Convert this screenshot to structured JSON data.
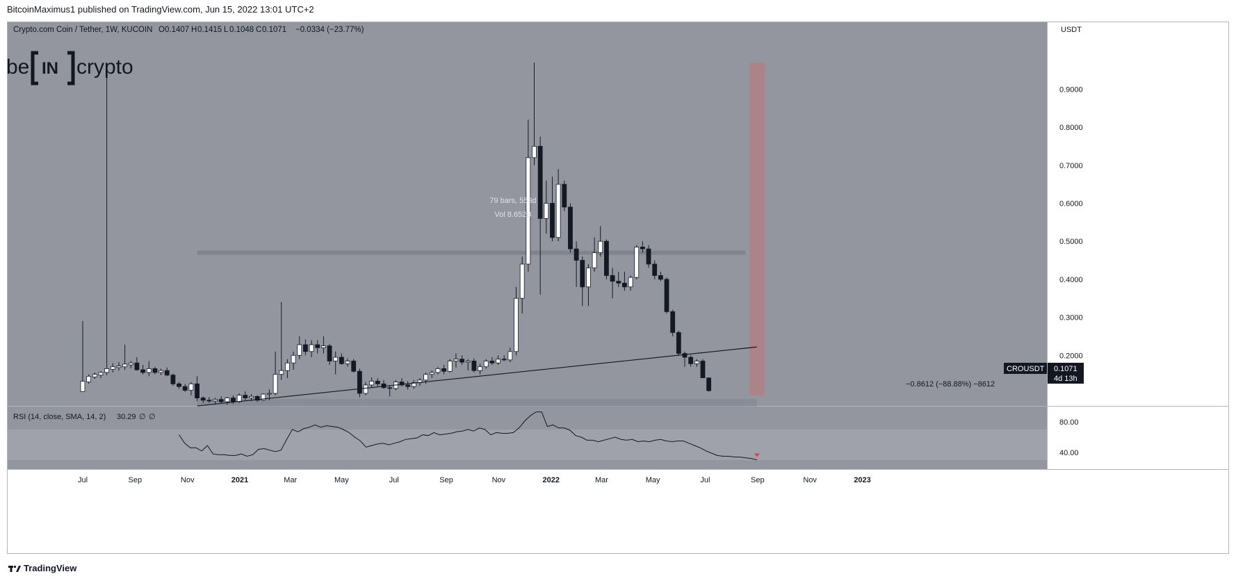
{
  "header": {
    "published_line": "BitcoinMaximus1 published on TradingView.com, Jun 15, 2022 13:01 UTC+2"
  },
  "legend": {
    "symbol_line": "Crypto.com Coin / Tether, 1W, KUCOIN",
    "o_label": "O",
    "o_value": "0.1407",
    "h_label": "H",
    "h_value": "0.1415",
    "l_label": "L",
    "l_value": "0.1048",
    "c_label": "C",
    "c_value": "0.1071",
    "change": "−0.0334 (−23.77%)"
  },
  "logo": {
    "left": "be",
    "mid": "IN",
    "right": "crypto"
  },
  "annotations": {
    "bars_range": "79 bars, 553d",
    "volume": "Vol 8.652B",
    "measure": "−0.8612 (−88.88%) −8612"
  },
  "price_tag": {
    "symbol": "CROUSDT",
    "value": "0.1071",
    "countdown": "4d 13h"
  },
  "rsi_legend": {
    "label": "RSI (14, close, SMA, 14, 2)",
    "value": "30.29",
    "n1": "∅",
    "n2": "∅"
  },
  "footer": {
    "brand": "TradingView"
  },
  "colors": {
    "plot_bg": "#93969f",
    "band_bg": "#9fa2aa",
    "up_body": "#ffffff",
    "down_body": "#151924",
    "wick": "#151924",
    "highlight_bar": "#ac8389",
    "resistance_band": "#7f828b",
    "signal_arrow": "#f23645"
  },
  "chart_data": [
    {
      "type": "candlestick",
      "title": "Crypto.com Coin / Tether, 1W, KUCOIN",
      "ylabel": "USDT",
      "y_axis_labels": [
        "0.9000",
        "0.8000",
        "0.7000",
        "0.6000",
        "0.5000",
        "0.4000",
        "0.3000",
        "0.2000"
      ],
      "y_ticks": [
        0.9,
        0.8,
        0.7,
        0.6,
        0.5,
        0.4,
        0.3,
        0.2
      ],
      "ylim": [
        0.03,
        1.0
      ],
      "x_tick_labels": [
        "Jul",
        "Sep",
        "Nov",
        "2021",
        "Mar",
        "May",
        "Jul",
        "Sep",
        "Nov",
        "2022",
        "Mar",
        "May",
        "Jul",
        "Sep",
        "Nov",
        "2023"
      ],
      "x_tick_weeks": [
        0,
        8.7,
        17.4,
        26.1,
        34.5,
        43.0,
        51.7,
        60.4,
        69.1,
        77.8,
        86.2,
        94.7,
        103.4,
        112.1,
        120.8,
        129.5
      ],
      "x_start": "2020-07-06",
      "x_unit": "week",
      "grid": false,
      "candles": [
        {
          "o": 0.105,
          "h": 0.29,
          "l": 0.105,
          "c": 0.132
        },
        {
          "o": 0.13,
          "h": 0.15,
          "l": 0.125,
          "c": 0.145
        },
        {
          "o": 0.143,
          "h": 0.155,
          "l": 0.138,
          "c": 0.15
        },
        {
          "o": 0.148,
          "h": 0.158,
          "l": 0.14,
          "c": 0.155
        },
        {
          "o": 0.155,
          "h": 0.97,
          "l": 0.148,
          "c": 0.165
        },
        {
          "o": 0.163,
          "h": 0.18,
          "l": 0.155,
          "c": 0.17
        },
        {
          "o": 0.168,
          "h": 0.182,
          "l": 0.16,
          "c": 0.172
        },
        {
          "o": 0.17,
          "h": 0.228,
          "l": 0.162,
          "c": 0.177
        },
        {
          "o": 0.175,
          "h": 0.185,
          "l": 0.166,
          "c": 0.18
        },
        {
          "o": 0.18,
          "h": 0.195,
          "l": 0.16,
          "c": 0.162
        },
        {
          "o": 0.162,
          "h": 0.175,
          "l": 0.15,
          "c": 0.155
        },
        {
          "o": 0.155,
          "h": 0.185,
          "l": 0.145,
          "c": 0.165
        },
        {
          "o": 0.165,
          "h": 0.17,
          "l": 0.15,
          "c": 0.155
        },
        {
          "o": 0.155,
          "h": 0.165,
          "l": 0.148,
          "c": 0.16
        },
        {
          "o": 0.16,
          "h": 0.168,
          "l": 0.145,
          "c": 0.148
        },
        {
          "o": 0.148,
          "h": 0.152,
          "l": 0.12,
          "c": 0.125
        },
        {
          "o": 0.125,
          "h": 0.13,
          "l": 0.112,
          "c": 0.118
        },
        {
          "o": 0.118,
          "h": 0.125,
          "l": 0.104,
          "c": 0.108
        },
        {
          "o": 0.108,
          "h": 0.13,
          "l": 0.095,
          "c": 0.125
        },
        {
          "o": 0.125,
          "h": 0.145,
          "l": 0.08,
          "c": 0.088
        },
        {
          "o": 0.088,
          "h": 0.092,
          "l": 0.075,
          "c": 0.082
        },
        {
          "o": 0.082,
          "h": 0.09,
          "l": 0.075,
          "c": 0.08
        },
        {
          "o": 0.08,
          "h": 0.088,
          "l": 0.072,
          "c": 0.084
        },
        {
          "o": 0.084,
          "h": 0.092,
          "l": 0.074,
          "c": 0.078
        },
        {
          "o": 0.078,
          "h": 0.09,
          "l": 0.07,
          "c": 0.088
        },
        {
          "o": 0.088,
          "h": 0.095,
          "l": 0.072,
          "c": 0.078
        },
        {
          "o": 0.078,
          "h": 0.1,
          "l": 0.075,
          "c": 0.095
        },
        {
          "o": 0.095,
          "h": 0.105,
          "l": 0.082,
          "c": 0.088
        },
        {
          "o": 0.088,
          "h": 0.098,
          "l": 0.08,
          "c": 0.092
        },
        {
          "o": 0.092,
          "h": 0.095,
          "l": 0.078,
          "c": 0.082
        },
        {
          "o": 0.082,
          "h": 0.1,
          "l": 0.08,
          "c": 0.098
        },
        {
          "o": 0.098,
          "h": 0.11,
          "l": 0.082,
          "c": 0.1
        },
        {
          "o": 0.1,
          "h": 0.21,
          "l": 0.095,
          "c": 0.15
        },
        {
          "o": 0.15,
          "h": 0.34,
          "l": 0.135,
          "c": 0.16
        },
        {
          "o": 0.16,
          "h": 0.19,
          "l": 0.14,
          "c": 0.18
        },
        {
          "o": 0.18,
          "h": 0.21,
          "l": 0.162,
          "c": 0.2
        },
        {
          "o": 0.2,
          "h": 0.25,
          "l": 0.19,
          "c": 0.228
        },
        {
          "o": 0.228,
          "h": 0.242,
          "l": 0.2,
          "c": 0.21
        },
        {
          "o": 0.21,
          "h": 0.24,
          "l": 0.195,
          "c": 0.228
        },
        {
          "o": 0.228,
          "h": 0.24,
          "l": 0.205,
          "c": 0.22
        },
        {
          "o": 0.22,
          "h": 0.25,
          "l": 0.205,
          "c": 0.225
        },
        {
          "o": 0.225,
          "h": 0.23,
          "l": 0.175,
          "c": 0.185
        },
        {
          "o": 0.185,
          "h": 0.21,
          "l": 0.15,
          "c": 0.195
        },
        {
          "o": 0.195,
          "h": 0.205,
          "l": 0.175,
          "c": 0.178
        },
        {
          "o": 0.178,
          "h": 0.192,
          "l": 0.17,
          "c": 0.185
        },
        {
          "o": 0.185,
          "h": 0.19,
          "l": 0.155,
          "c": 0.158
        },
        {
          "o": 0.158,
          "h": 0.165,
          "l": 0.09,
          "c": 0.1
        },
        {
          "o": 0.1,
          "h": 0.13,
          "l": 0.095,
          "c": 0.122
        },
        {
          "o": 0.122,
          "h": 0.142,
          "l": 0.115,
          "c": 0.132
        },
        {
          "o": 0.132,
          "h": 0.14,
          "l": 0.118,
          "c": 0.125
        },
        {
          "o": 0.125,
          "h": 0.135,
          "l": 0.112,
          "c": 0.115
        },
        {
          "o": 0.115,
          "h": 0.12,
          "l": 0.092,
          "c": 0.113
        },
        {
          "o": 0.113,
          "h": 0.135,
          "l": 0.108,
          "c": 0.13
        },
        {
          "o": 0.13,
          "h": 0.14,
          "l": 0.118,
          "c": 0.122
        },
        {
          "o": 0.122,
          "h": 0.132,
          "l": 0.11,
          "c": 0.118
        },
        {
          "o": 0.118,
          "h": 0.135,
          "l": 0.112,
          "c": 0.128
        },
        {
          "o": 0.128,
          "h": 0.14,
          "l": 0.12,
          "c": 0.135
        },
        {
          "o": 0.135,
          "h": 0.155,
          "l": 0.125,
          "c": 0.15
        },
        {
          "o": 0.15,
          "h": 0.16,
          "l": 0.14,
          "c": 0.155
        },
        {
          "o": 0.155,
          "h": 0.17,
          "l": 0.15,
          "c": 0.165
        },
        {
          "o": 0.165,
          "h": 0.175,
          "l": 0.15,
          "c": 0.158
        },
        {
          "o": 0.158,
          "h": 0.19,
          "l": 0.155,
          "c": 0.185
        },
        {
          "o": 0.185,
          "h": 0.205,
          "l": 0.168,
          "c": 0.19
        },
        {
          "o": 0.19,
          "h": 0.2,
          "l": 0.175,
          "c": 0.182
        },
        {
          "o": 0.182,
          "h": 0.19,
          "l": 0.16,
          "c": 0.185
        },
        {
          "o": 0.185,
          "h": 0.192,
          "l": 0.155,
          "c": 0.16
        },
        {
          "o": 0.16,
          "h": 0.178,
          "l": 0.15,
          "c": 0.17
        },
        {
          "o": 0.17,
          "h": 0.19,
          "l": 0.165,
          "c": 0.185
        },
        {
          "o": 0.185,
          "h": 0.195,
          "l": 0.175,
          "c": 0.18
        },
        {
          "o": 0.18,
          "h": 0.2,
          "l": 0.175,
          "c": 0.19
        },
        {
          "o": 0.19,
          "h": 0.2,
          "l": 0.185,
          "c": 0.188
        },
        {
          "o": 0.188,
          "h": 0.22,
          "l": 0.182,
          "c": 0.21
        },
        {
          "o": 0.21,
          "h": 0.38,
          "l": 0.2,
          "c": 0.35
        },
        {
          "o": 0.35,
          "h": 0.46,
          "l": 0.31,
          "c": 0.44
        },
        {
          "o": 0.44,
          "h": 0.82,
          "l": 0.42,
          "c": 0.72
        },
        {
          "o": 0.72,
          "h": 0.97,
          "l": 0.7,
          "c": 0.75
        },
        {
          "o": 0.75,
          "h": 0.775,
          "l": 0.36,
          "c": 0.56
        },
        {
          "o": 0.56,
          "h": 0.66,
          "l": 0.52,
          "c": 0.6
        },
        {
          "o": 0.6,
          "h": 0.67,
          "l": 0.5,
          "c": 0.51
        },
        {
          "o": 0.51,
          "h": 0.69,
          "l": 0.5,
          "c": 0.65
        },
        {
          "o": 0.65,
          "h": 0.66,
          "l": 0.58,
          "c": 0.59
        },
        {
          "o": 0.59,
          "h": 0.6,
          "l": 0.47,
          "c": 0.48
        },
        {
          "o": 0.48,
          "h": 0.5,
          "l": 0.38,
          "c": 0.45
        },
        {
          "o": 0.45,
          "h": 0.46,
          "l": 0.33,
          "c": 0.38
        },
        {
          "o": 0.38,
          "h": 0.44,
          "l": 0.33,
          "c": 0.43
        },
        {
          "o": 0.43,
          "h": 0.51,
          "l": 0.42,
          "c": 0.47
        },
        {
          "o": 0.47,
          "h": 0.54,
          "l": 0.46,
          "c": 0.5
        },
        {
          "o": 0.5,
          "h": 0.505,
          "l": 0.4,
          "c": 0.41
        },
        {
          "o": 0.41,
          "h": 0.43,
          "l": 0.35,
          "c": 0.395
        },
        {
          "o": 0.395,
          "h": 0.42,
          "l": 0.38,
          "c": 0.39
        },
        {
          "o": 0.39,
          "h": 0.42,
          "l": 0.37,
          "c": 0.38
        },
        {
          "o": 0.38,
          "h": 0.41,
          "l": 0.37,
          "c": 0.405
        },
        {
          "o": 0.405,
          "h": 0.49,
          "l": 0.4,
          "c": 0.485
        },
        {
          "o": 0.485,
          "h": 0.5,
          "l": 0.47,
          "c": 0.48
        },
        {
          "o": 0.48,
          "h": 0.49,
          "l": 0.43,
          "c": 0.44
        },
        {
          "o": 0.44,
          "h": 0.45,
          "l": 0.4,
          "c": 0.41
        },
        {
          "o": 0.41,
          "h": 0.42,
          "l": 0.395,
          "c": 0.4
        },
        {
          "o": 0.4,
          "h": 0.405,
          "l": 0.31,
          "c": 0.315
        },
        {
          "o": 0.315,
          "h": 0.32,
          "l": 0.25,
          "c": 0.26
        },
        {
          "o": 0.26,
          "h": 0.265,
          "l": 0.2,
          "c": 0.205
        },
        {
          "o": 0.205,
          "h": 0.21,
          "l": 0.17,
          "c": 0.195
        },
        {
          "o": 0.195,
          "h": 0.2,
          "l": 0.17,
          "c": 0.178
        },
        {
          "o": 0.178,
          "h": 0.19,
          "l": 0.17,
          "c": 0.185
        },
        {
          "o": 0.185,
          "h": 0.19,
          "l": 0.14,
          "c": 0.141
        },
        {
          "o": 0.1407,
          "h": 0.1415,
          "l": 0.1048,
          "c": 0.1071
        }
      ],
      "support_line": {
        "from": {
          "week": 19,
          "price": 0.067
        },
        "to": {
          "week": 112,
          "price": 0.222
        }
      },
      "resistance_zone": {
        "price": 0.47,
        "from_week": 19,
        "to_week": 72
      },
      "measure_zone": {
        "low": 0.066,
        "high": 0.085,
        "from_week": 19,
        "to_week": 112
      },
      "highlight_bar": {
        "week": 112,
        "low": 0.095,
        "high": 0.97
      },
      "last_price": 0.1071
    },
    {
      "type": "line",
      "title": "RSI (14, close, SMA, 14, 2)",
      "y_axis_labels": [
        "80.00",
        "40.00"
      ],
      "y_ticks": [
        80,
        40
      ],
      "ylim": [
        20,
        100
      ],
      "band": [
        30,
        70
      ],
      "start_week": 16,
      "values": [
        63,
        52,
        46,
        46,
        42,
        49,
        38,
        37,
        37,
        36,
        36,
        38,
        35,
        37,
        44,
        45,
        43,
        41,
        43,
        57,
        70,
        67,
        71,
        73,
        76,
        73,
        75,
        74,
        73,
        70,
        66,
        60,
        55,
        47,
        49,
        51,
        52,
        50,
        52,
        54,
        57,
        58,
        59,
        63,
        62,
        66,
        63,
        64,
        65,
        67,
        68,
        70,
        68,
        72,
        70,
        63,
        66,
        65,
        65,
        66,
        72,
        81,
        88,
        93,
        93,
        74,
        76,
        72,
        72,
        69,
        62,
        60,
        56,
        56,
        54,
        56,
        58,
        60,
        57,
        56,
        57,
        54,
        55,
        54,
        56,
        57,
        55,
        54,
        55,
        55,
        52,
        49,
        46,
        42,
        39,
        36,
        35,
        35,
        34,
        34,
        33,
        32,
        30.29
      ],
      "signal_arrow": {
        "week": 112,
        "value": 35
      }
    }
  ]
}
